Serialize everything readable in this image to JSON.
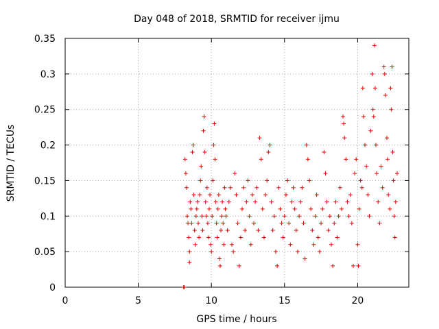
{
  "chart_data": {
    "type": "scatter",
    "title": "Day 048 of 2018, SRMTID for receiver ijmu",
    "xlabel": "GPS time / hours",
    "ylabel": "SRMTID / TECUs",
    "xlim": [
      0,
      23.5
    ],
    "ylim": [
      0,
      0.35
    ],
    "x_ticks": [
      "0",
      "5",
      "10",
      "15",
      "20"
    ],
    "x_tick_values": [
      0,
      5,
      10,
      15,
      20
    ],
    "y_ticks": [
      "0",
      "0.05",
      "0.1",
      "0.15",
      "0.2",
      "0.25",
      "0.3",
      "0.35"
    ],
    "y_tick_values": [
      0,
      0.05,
      0.1,
      0.15,
      0.2,
      0.25,
      0.3,
      0.35
    ],
    "grid": true,
    "marker": "+",
    "series": [
      {
        "color": "#e00000",
        "points": [
          [
            8.1,
            0.0
          ],
          [
            8.15,
            0.0
          ],
          [
            8.2,
            0.18
          ],
          [
            8.25,
            0.16
          ],
          [
            8.3,
            0.14
          ],
          [
            8.35,
            0.1
          ],
          [
            8.4,
            0.09
          ],
          [
            8.45,
            0.07
          ],
          [
            8.5,
            0.05
          ],
          [
            8.5,
            0.035
          ],
          [
            8.55,
            0.12
          ],
          [
            8.6,
            0.11
          ],
          [
            8.65,
            0.09
          ],
          [
            8.7,
            0.19
          ],
          [
            8.75,
            0.2
          ],
          [
            8.8,
            0.13
          ],
          [
            8.85,
            0.08
          ],
          [
            8.9,
            0.06
          ],
          [
            8.95,
            0.1
          ],
          [
            9.0,
            0.11
          ],
          [
            9.05,
            0.12
          ],
          [
            9.1,
            0.09
          ],
          [
            9.15,
            0.07
          ],
          [
            9.2,
            0.13
          ],
          [
            9.25,
            0.15
          ],
          [
            9.3,
            0.17
          ],
          [
            9.35,
            0.1
          ],
          [
            9.4,
            0.08
          ],
          [
            9.45,
            0.22
          ],
          [
            9.5,
            0.24
          ],
          [
            9.55,
            0.19
          ],
          [
            9.6,
            0.12
          ],
          [
            9.65,
            0.1
          ],
          [
            9.7,
            0.14
          ],
          [
            9.75,
            0.09
          ],
          [
            9.8,
            0.07
          ],
          [
            9.85,
            0.11
          ],
          [
            9.9,
            0.13
          ],
          [
            9.95,
            0.06
          ],
          [
            10.0,
            0.05
          ],
          [
            10.05,
            0.1
          ],
          [
            10.1,
            0.15
          ],
          [
            10.15,
            0.2
          ],
          [
            10.2,
            0.23
          ],
          [
            10.25,
            0.18
          ],
          [
            10.3,
            0.12
          ],
          [
            10.35,
            0.09
          ],
          [
            10.4,
            0.07
          ],
          [
            10.45,
            0.11
          ],
          [
            10.5,
            0.13
          ],
          [
            10.55,
            0.04
          ],
          [
            10.6,
            0.03
          ],
          [
            10.65,
            0.08
          ],
          [
            10.7,
            0.1
          ],
          [
            10.75,
            0.12
          ],
          [
            10.8,
            0.09
          ],
          [
            10.85,
            0.06
          ],
          [
            10.9,
            0.14
          ],
          [
            10.95,
            0.11
          ],
          [
            11.0,
            0.1
          ],
          [
            11.1,
            0.08
          ],
          [
            11.2,
            0.12
          ],
          [
            11.3,
            0.14
          ],
          [
            11.4,
            0.06
          ],
          [
            11.5,
            0.05
          ],
          [
            11.6,
            0.16
          ],
          [
            11.7,
            0.13
          ],
          [
            11.8,
            0.09
          ],
          [
            11.9,
            0.03
          ],
          [
            12.0,
            0.07
          ],
          [
            12.1,
            0.11
          ],
          [
            12.2,
            0.14
          ],
          [
            12.3,
            0.08
          ],
          [
            12.4,
            0.12
          ],
          [
            12.5,
            0.15
          ],
          [
            12.6,
            0.1
          ],
          [
            12.7,
            0.06
          ],
          [
            12.8,
            0.13
          ],
          [
            12.9,
            0.09
          ],
          [
            13.0,
            0.12
          ],
          [
            13.1,
            0.14
          ],
          [
            13.2,
            0.08
          ],
          [
            13.3,
            0.21
          ],
          [
            13.4,
            0.18
          ],
          [
            13.5,
            0.11
          ],
          [
            13.6,
            0.07
          ],
          [
            13.7,
            0.13
          ],
          [
            13.8,
            0.15
          ],
          [
            13.9,
            0.19
          ],
          [
            14.0,
            0.2
          ],
          [
            14.1,
            0.12
          ],
          [
            14.2,
            0.08
          ],
          [
            14.3,
            0.1
          ],
          [
            14.4,
            0.05
          ],
          [
            14.5,
            0.03
          ],
          [
            14.6,
            0.14
          ],
          [
            14.7,
            0.11
          ],
          [
            14.8,
            0.09
          ],
          [
            14.9,
            0.07
          ],
          [
            15.0,
            0.1
          ],
          [
            15.1,
            0.13
          ],
          [
            15.2,
            0.15
          ],
          [
            15.3,
            0.09
          ],
          [
            15.4,
            0.06
          ],
          [
            15.5,
            0.12
          ],
          [
            15.6,
            0.14
          ],
          [
            15.7,
            0.11
          ],
          [
            15.8,
            0.08
          ],
          [
            15.9,
            0.05
          ],
          [
            16.0,
            0.1
          ],
          [
            16.1,
            0.12
          ],
          [
            16.2,
            0.14
          ],
          [
            16.3,
            0.09
          ],
          [
            16.4,
            0.04
          ],
          [
            16.5,
            0.2
          ],
          [
            16.6,
            0.18
          ],
          [
            16.7,
            0.15
          ],
          [
            16.8,
            0.11
          ],
          [
            16.9,
            0.08
          ],
          [
            17.0,
            0.06
          ],
          [
            17.1,
            0.1
          ],
          [
            17.2,
            0.13
          ],
          [
            17.3,
            0.07
          ],
          [
            17.4,
            0.05
          ],
          [
            17.5,
            0.09
          ],
          [
            17.6,
            0.11
          ],
          [
            17.7,
            0.19
          ],
          [
            17.8,
            0.16
          ],
          [
            17.9,
            0.12
          ],
          [
            18.0,
            0.08
          ],
          [
            18.1,
            0.1
          ],
          [
            18.2,
            0.06
          ],
          [
            18.3,
            0.03
          ],
          [
            18.4,
            0.09
          ],
          [
            18.5,
            0.12
          ],
          [
            18.6,
            0.07
          ],
          [
            18.7,
            0.1
          ],
          [
            18.8,
            0.14
          ],
          [
            18.9,
            0.11
          ],
          [
            19.0,
            0.24
          ],
          [
            19.05,
            0.23
          ],
          [
            19.1,
            0.21
          ],
          [
            19.2,
            0.18
          ],
          [
            19.3,
            0.12
          ],
          [
            19.4,
            0.1
          ],
          [
            19.5,
            0.13
          ],
          [
            19.6,
            0.09
          ],
          [
            19.7,
            0.03
          ],
          [
            19.8,
            0.16
          ],
          [
            19.9,
            0.18
          ],
          [
            20.0,
            0.06
          ],
          [
            20.05,
            0.03
          ],
          [
            20.1,
            0.11
          ],
          [
            20.2,
            0.15
          ],
          [
            20.3,
            0.14
          ],
          [
            20.35,
            0.28
          ],
          [
            20.4,
            0.24
          ],
          [
            20.5,
            0.2
          ],
          [
            20.6,
            0.17
          ],
          [
            20.7,
            0.13
          ],
          [
            20.8,
            0.1
          ],
          [
            20.9,
            0.22
          ],
          [
            21.0,
            0.3
          ],
          [
            21.05,
            0.25
          ],
          [
            21.1,
            0.24
          ],
          [
            21.15,
            0.34
          ],
          [
            21.2,
            0.28
          ],
          [
            21.25,
            0.2
          ],
          [
            21.3,
            0.16
          ],
          [
            21.4,
            0.12
          ],
          [
            21.5,
            0.09
          ],
          [
            21.6,
            0.17
          ],
          [
            21.7,
            0.14
          ],
          [
            21.8,
            0.31
          ],
          [
            21.85,
            0.3
          ],
          [
            21.9,
            0.27
          ],
          [
            22.0,
            0.21
          ],
          [
            22.05,
            0.18
          ],
          [
            22.1,
            0.13
          ],
          [
            22.2,
            0.11
          ],
          [
            22.25,
            0.28
          ],
          [
            22.3,
            0.25
          ],
          [
            22.35,
            0.31
          ],
          [
            22.4,
            0.19
          ],
          [
            22.45,
            0.15
          ],
          [
            22.5,
            0.1
          ],
          [
            22.55,
            0.07
          ],
          [
            22.6,
            0.12
          ],
          [
            22.7,
            0.16
          ]
        ]
      }
    ]
  }
}
